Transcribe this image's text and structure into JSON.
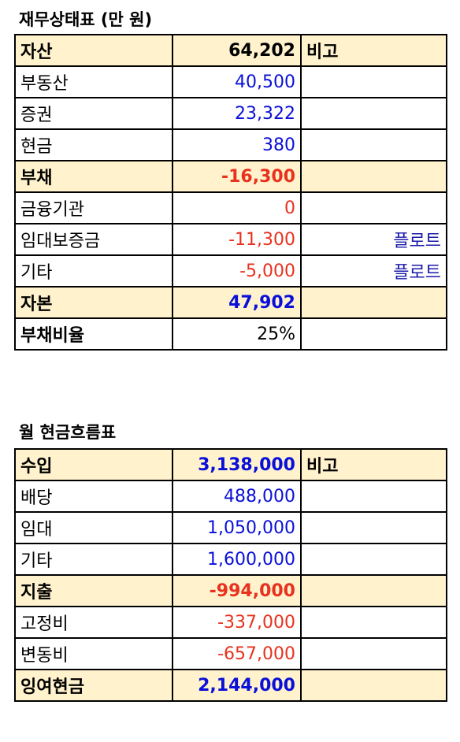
{
  "balance_sheet": {
    "title": "재무상태표 (만 원)",
    "note_header": "비고",
    "rows": [
      {
        "label": "자산",
        "value": "64,202",
        "note": "",
        "header": true,
        "color": "black"
      },
      {
        "label": "부동산",
        "value": "40,500",
        "note": "",
        "header": false,
        "color": "blue"
      },
      {
        "label": "증권",
        "value": "23,322",
        "note": "",
        "header": false,
        "color": "blue"
      },
      {
        "label": "현금",
        "value": "380",
        "note": "",
        "header": false,
        "color": "blue"
      },
      {
        "label": "부채",
        "value": "-16,300",
        "note": "",
        "header": true,
        "color": "red"
      },
      {
        "label": "금융기관",
        "value": "0",
        "note": "",
        "header": false,
        "color": "red"
      },
      {
        "label": "임대보증금",
        "value": "-11,300",
        "note": "플로트",
        "header": false,
        "color": "red"
      },
      {
        "label": "기타",
        "value": "-5,000",
        "note": "플로트",
        "header": false,
        "color": "red"
      },
      {
        "label": "자본",
        "value": "47,902",
        "note": "",
        "header": true,
        "color": "blue"
      },
      {
        "label": "부채비율",
        "value": "25%",
        "note": "",
        "header": false,
        "color": "black",
        "bold_label": true
      }
    ]
  },
  "cash_flow": {
    "title": "월 현금흐름표",
    "note_header": "비고",
    "rows": [
      {
        "label": "수입",
        "value": "3,138,000",
        "header": true,
        "color": "blue"
      },
      {
        "label": "배당",
        "value": "488,000",
        "header": false,
        "color": "blue"
      },
      {
        "label": "임대",
        "value": "1,050,000",
        "header": false,
        "color": "blue"
      },
      {
        "label": "기타",
        "value": "1,600,000",
        "header": false,
        "color": "blue"
      },
      {
        "label": "지출",
        "value": "-994,000",
        "header": true,
        "color": "red"
      },
      {
        "label": "고정비",
        "value": "-337,000",
        "header": false,
        "color": "red"
      },
      {
        "label": "변동비",
        "value": "-657,000",
        "header": false,
        "color": "red"
      },
      {
        "label": "잉여현금",
        "value": "2,144,000",
        "header": true,
        "color": "blue"
      }
    ]
  },
  "colors": {
    "header_bg": "#fff2cc",
    "positive": "#0a10d8",
    "negative": "#e8321e",
    "note_link": "#1a1aa8"
  }
}
